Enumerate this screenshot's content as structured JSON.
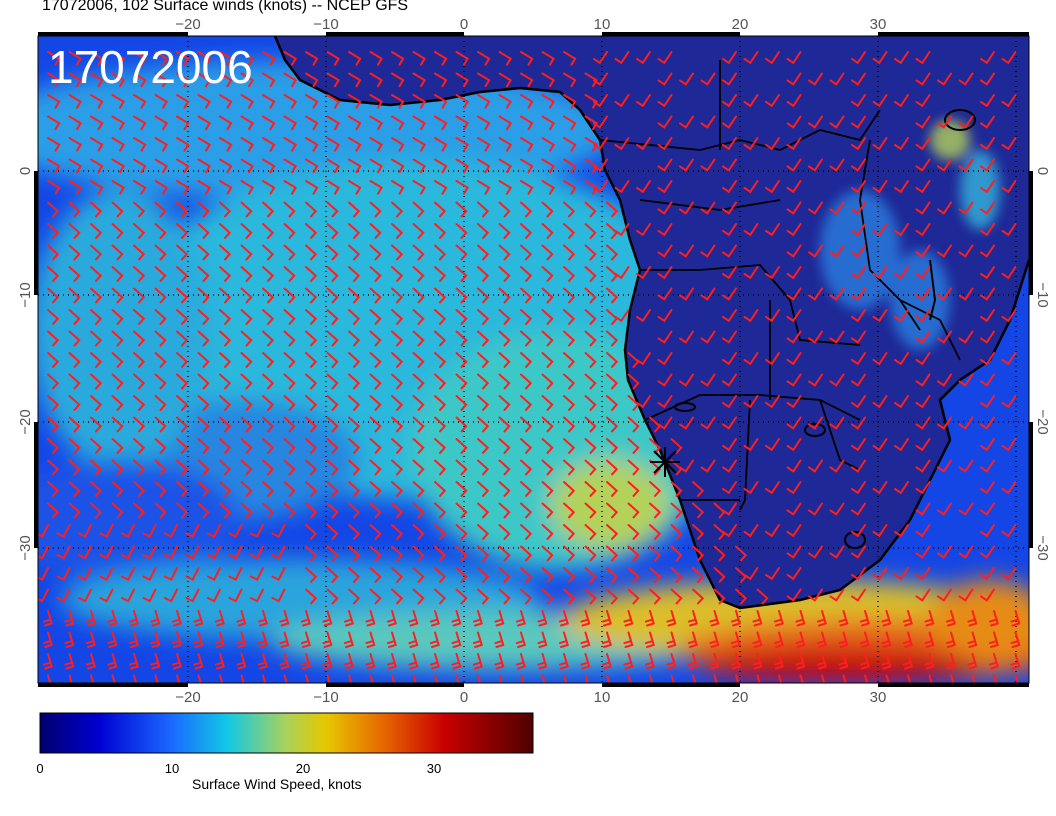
{
  "header": {
    "title": "17072006, 102 Surface winds (knots) -- NCEP GFS"
  },
  "map": {
    "stamp": "17072006",
    "lon_ticks": [
      "−20",
      "−10",
      "0",
      "10",
      "20",
      "30"
    ],
    "lat_ticks": [
      "0",
      "−10",
      "−20",
      "−30"
    ],
    "marker": "station-star"
  },
  "colorbar": {
    "ticks": [
      "0",
      "10",
      "20",
      "30"
    ],
    "label": "Surface Wind Speed, knots",
    "colors": [
      "#00006e",
      "#0000d2",
      "#1a64ff",
      "#12c8e6",
      "#aad25a",
      "#e6c800",
      "#e66400",
      "#c80000",
      "#500000"
    ]
  },
  "colors": {
    "barb": "#ff1e1e",
    "land": "#1e2896",
    "ocean_low": "#1446e6",
    "ocean_mid": "#28b4dc"
  }
}
